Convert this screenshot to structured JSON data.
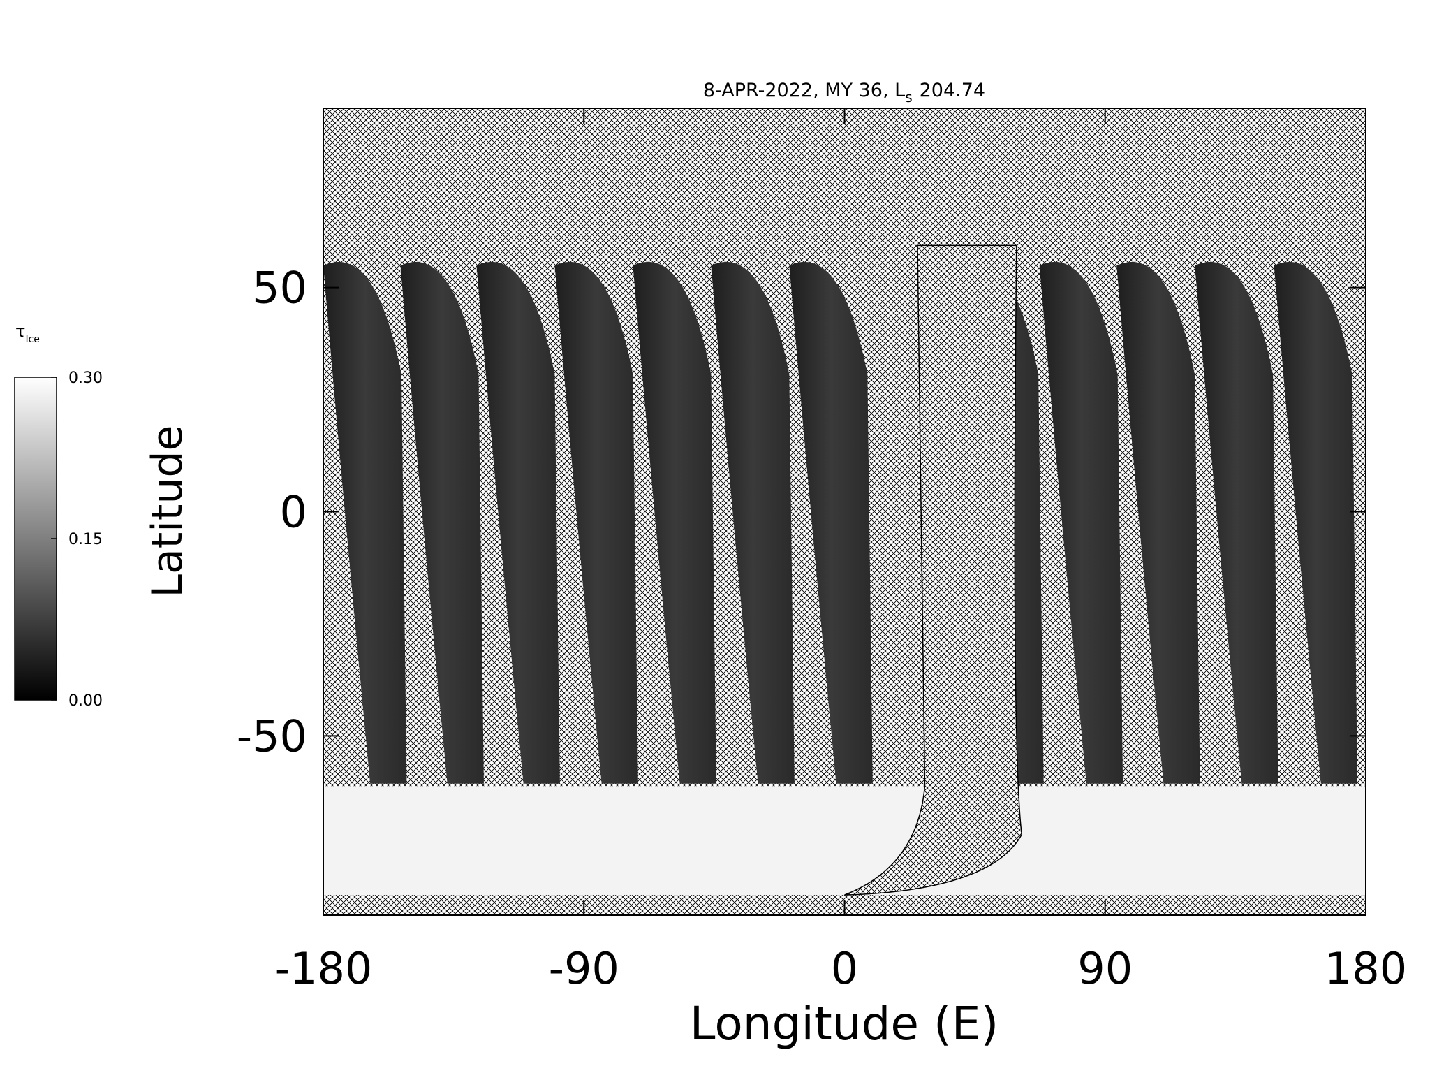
{
  "chart_data": {
    "type": "map",
    "title": "8-APR-2022, MY 36,  L",
    "title_subscript": "s",
    "title_value": "204.74",
    "x_label": "Longitude (E)",
    "y_label": "Latitude",
    "xlim": [
      -180,
      180
    ],
    "ylim": [
      -90,
      90
    ],
    "xticks": [
      -180,
      -90,
      0,
      90,
      180
    ],
    "yticks": [
      -50,
      0,
      50
    ],
    "colorbar": {
      "label": "τ",
      "label_subscript": "Ice",
      "lim": [
        0,
        0.3
      ],
      "ticks": [
        {
          "value": 0,
          "label": "0.00"
        },
        {
          "value": 0.15,
          "label": "0.15"
        },
        {
          "value": 0.3,
          "label": "0.30"
        }
      ]
    }
  }
}
